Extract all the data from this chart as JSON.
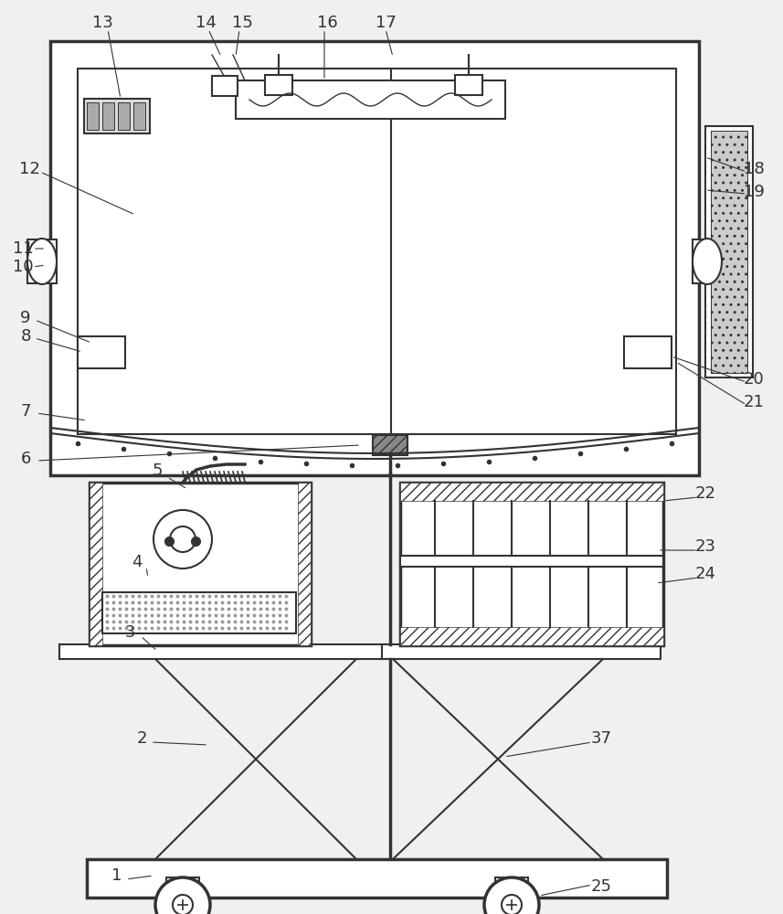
{
  "bg_color": "#f0f0f0",
  "line_color": "#333333",
  "label_color": "#333333"
}
